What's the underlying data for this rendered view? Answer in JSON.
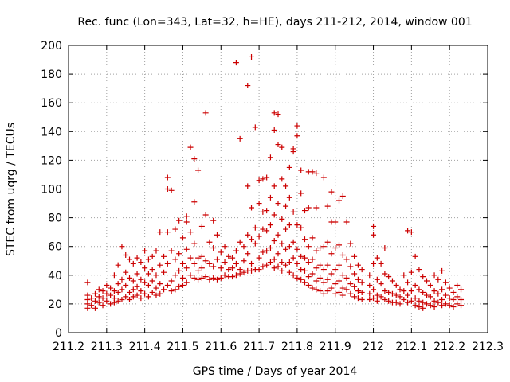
{
  "chart_data": {
    "type": "scatter",
    "title": "Rec. func (Lon=343, Lat=32, h=HE), days 211-212, 2014, window 001",
    "xlabel": "GPS time / Days of year 2014",
    "ylabel": "STEC from uqrg / TECUs",
    "xlim": [
      211.2,
      212.3
    ],
    "ylim": [
      0,
      200
    ],
    "x_ticks": [
      211.2,
      211.3,
      211.4,
      211.5,
      211.6,
      211.7,
      211.8,
      211.9,
      212.0,
      212.1,
      212.2,
      212.3
    ],
    "x_tick_labels": [
      "211.2",
      "211.3",
      "211.4",
      "211.5",
      "211.6",
      "211.7",
      "211.8",
      "211.9",
      "212",
      "212.1",
      "212.2",
      "212.3"
    ],
    "y_ticks": [
      0,
      20,
      40,
      60,
      80,
      100,
      120,
      140,
      160,
      180,
      200
    ],
    "y_tick_labels": [
      "0",
      "20",
      "40",
      "60",
      "80",
      "100",
      "120",
      "140",
      "160",
      "180",
      "200"
    ],
    "grid": true,
    "marker": "+",
    "color": "#cc0000",
    "points": [
      [
        211.25,
        35
      ],
      [
        211.25,
        26
      ],
      [
        211.25,
        23
      ],
      [
        211.25,
        20
      ],
      [
        211.25,
        17
      ],
      [
        211.26,
        24
      ],
      [
        211.26,
        19
      ],
      [
        211.27,
        27
      ],
      [
        211.27,
        22
      ],
      [
        211.27,
        17
      ],
      [
        211.28,
        30
      ],
      [
        211.28,
        25
      ],
      [
        211.28,
        21
      ],
      [
        211.29,
        29
      ],
      [
        211.29,
        24
      ],
      [
        211.29,
        19
      ],
      [
        211.3,
        33
      ],
      [
        211.3,
        27
      ],
      [
        211.3,
        22
      ],
      [
        211.31,
        31
      ],
      [
        211.31,
        26
      ],
      [
        211.31,
        20
      ],
      [
        211.32,
        40
      ],
      [
        211.32,
        29
      ],
      [
        211.32,
        24
      ],
      [
        211.32,
        21
      ],
      [
        211.33,
        47
      ],
      [
        211.33,
        34
      ],
      [
        211.33,
        28
      ],
      [
        211.33,
        22
      ],
      [
        211.34,
        60
      ],
      [
        211.34,
        37
      ],
      [
        211.34,
        30
      ],
      [
        211.34,
        23
      ],
      [
        211.35,
        54
      ],
      [
        211.35,
        42
      ],
      [
        211.35,
        33
      ],
      [
        211.35,
        25
      ],
      [
        211.36,
        51
      ],
      [
        211.36,
        38
      ],
      [
        211.36,
        28
      ],
      [
        211.36,
        23
      ],
      [
        211.37,
        48
      ],
      [
        211.37,
        36
      ],
      [
        211.37,
        30
      ],
      [
        211.37,
        25
      ],
      [
        211.38,
        52
      ],
      [
        211.38,
        41
      ],
      [
        211.38,
        32
      ],
      [
        211.38,
        26
      ],
      [
        211.39,
        49
      ],
      [
        211.39,
        37
      ],
      [
        211.39,
        29
      ],
      [
        211.39,
        24
      ],
      [
        211.4,
        57
      ],
      [
        211.4,
        45
      ],
      [
        211.4,
        35
      ],
      [
        211.4,
        27
      ],
      [
        211.41,
        51
      ],
      [
        211.41,
        41
      ],
      [
        211.41,
        33
      ],
      [
        211.41,
        25
      ],
      [
        211.42,
        53
      ],
      [
        211.42,
        44
      ],
      [
        211.42,
        36
      ],
      [
        211.42,
        28
      ],
      [
        211.43,
        57
      ],
      [
        211.43,
        40
      ],
      [
        211.43,
        31
      ],
      [
        211.43,
        26
      ],
      [
        211.44,
        70
      ],
      [
        211.44,
        47
      ],
      [
        211.44,
        34
      ],
      [
        211.44,
        27
      ],
      [
        211.45,
        53
      ],
      [
        211.45,
        42
      ],
      [
        211.45,
        30
      ],
      [
        211.46,
        108
      ],
      [
        211.46,
        100
      ],
      [
        211.46,
        70
      ],
      [
        211.46,
        48
      ],
      [
        211.46,
        33
      ],
      [
        211.47,
        99
      ],
      [
        211.47,
        57
      ],
      [
        211.47,
        36
      ],
      [
        211.47,
        29
      ],
      [
        211.48,
        72
      ],
      [
        211.48,
        51
      ],
      [
        211.48,
        40
      ],
      [
        211.48,
        30
      ],
      [
        211.49,
        78
      ],
      [
        211.49,
        55
      ],
      [
        211.49,
        43
      ],
      [
        211.49,
        32
      ],
      [
        211.5,
        66
      ],
      [
        211.5,
        48
      ],
      [
        211.5,
        38
      ],
      [
        211.5,
        33
      ],
      [
        211.51,
        81
      ],
      [
        211.51,
        77
      ],
      [
        211.51,
        58
      ],
      [
        211.51,
        45
      ],
      [
        211.51,
        35
      ],
      [
        211.52,
        129
      ],
      [
        211.52,
        70
      ],
      [
        211.52,
        52
      ],
      [
        211.52,
        40
      ],
      [
        211.53,
        121
      ],
      [
        211.53,
        91
      ],
      [
        211.53,
        62
      ],
      [
        211.53,
        48
      ],
      [
        211.53,
        38
      ],
      [
        211.54,
        113
      ],
      [
        211.54,
        52
      ],
      [
        211.54,
        43
      ],
      [
        211.54,
        37
      ],
      [
        211.55,
        74
      ],
      [
        211.55,
        53
      ],
      [
        211.55,
        45
      ],
      [
        211.55,
        38
      ],
      [
        211.56,
        153
      ],
      [
        211.56,
        82
      ],
      [
        211.56,
        50
      ],
      [
        211.56,
        39
      ],
      [
        211.57,
        63
      ],
      [
        211.57,
        48
      ],
      [
        211.57,
        37
      ],
      [
        211.58,
        78
      ],
      [
        211.58,
        59
      ],
      [
        211.58,
        46
      ],
      [
        211.58,
        38
      ],
      [
        211.59,
        68
      ],
      [
        211.59,
        51
      ],
      [
        211.59,
        37
      ],
      [
        211.6,
        56
      ],
      [
        211.6,
        45
      ],
      [
        211.6,
        38
      ],
      [
        211.61,
        60
      ],
      [
        211.61,
        49
      ],
      [
        211.61,
        40
      ],
      [
        211.62,
        53
      ],
      [
        211.62,
        44
      ],
      [
        211.62,
        39
      ],
      [
        211.63,
        52
      ],
      [
        211.63,
        45
      ],
      [
        211.63,
        39
      ],
      [
        211.64,
        188
      ],
      [
        211.64,
        57
      ],
      [
        211.64,
        48
      ],
      [
        211.64,
        40
      ],
      [
        211.65,
        135
      ],
      [
        211.65,
        63
      ],
      [
        211.65,
        44
      ],
      [
        211.65,
        41
      ],
      [
        211.66,
        60
      ],
      [
        211.66,
        50
      ],
      [
        211.66,
        42
      ],
      [
        211.67,
        172
      ],
      [
        211.67,
        102
      ],
      [
        211.67,
        68
      ],
      [
        211.67,
        55
      ],
      [
        211.67,
        43
      ],
      [
        211.68,
        192
      ],
      [
        211.68,
        87
      ],
      [
        211.68,
        65
      ],
      [
        211.68,
        48
      ],
      [
        211.68,
        43
      ],
      [
        211.69,
        143
      ],
      [
        211.69,
        73
      ],
      [
        211.69,
        62
      ],
      [
        211.69,
        44
      ],
      [
        211.7,
        106
      ],
      [
        211.7,
        90
      ],
      [
        211.7,
        67
      ],
      [
        211.7,
        52
      ],
      [
        211.7,
        44
      ],
      [
        211.71,
        107
      ],
      [
        211.71,
        84
      ],
      [
        211.71,
        72
      ],
      [
        211.71,
        56
      ],
      [
        211.71,
        46
      ],
      [
        211.72,
        108
      ],
      [
        211.72,
        85
      ],
      [
        211.72,
        71
      ],
      [
        211.72,
        57
      ],
      [
        211.72,
        47
      ],
      [
        211.73,
        122
      ],
      [
        211.73,
        94
      ],
      [
        211.73,
        75
      ],
      [
        211.73,
        59
      ],
      [
        211.73,
        49
      ],
      [
        211.74,
        153
      ],
      [
        211.74,
        141
      ],
      [
        211.74,
        102
      ],
      [
        211.74,
        82
      ],
      [
        211.74,
        64
      ],
      [
        211.74,
        51
      ],
      [
        211.74,
        45
      ],
      [
        211.75,
        152
      ],
      [
        211.75,
        131
      ],
      [
        211.75,
        90
      ],
      [
        211.75,
        68
      ],
      [
        211.75,
        55
      ],
      [
        211.75,
        46
      ],
      [
        211.76,
        129
      ],
      [
        211.76,
        107
      ],
      [
        211.76,
        79
      ],
      [
        211.76,
        62
      ],
      [
        211.76,
        49
      ],
      [
        211.76,
        43
      ],
      [
        211.77,
        102
      ],
      [
        211.77,
        88
      ],
      [
        211.77,
        72
      ],
      [
        211.77,
        58
      ],
      [
        211.77,
        47
      ],
      [
        211.78,
        115
      ],
      [
        211.78,
        94
      ],
      [
        211.78,
        75
      ],
      [
        211.78,
        60
      ],
      [
        211.78,
        49
      ],
      [
        211.78,
        42
      ],
      [
        211.79,
        128
      ],
      [
        211.79,
        126
      ],
      [
        211.79,
        84
      ],
      [
        211.79,
        63
      ],
      [
        211.79,
        52
      ],
      [
        211.79,
        40
      ],
      [
        211.8,
        144
      ],
      [
        211.8,
        137
      ],
      [
        211.8,
        75
      ],
      [
        211.8,
        58
      ],
      [
        211.8,
        48
      ],
      [
        211.8,
        38
      ],
      [
        211.81,
        113
      ],
      [
        211.81,
        97
      ],
      [
        211.81,
        73
      ],
      [
        211.81,
        53
      ],
      [
        211.81,
        44
      ],
      [
        211.81,
        37
      ],
      [
        211.82,
        85
      ],
      [
        211.82,
        65
      ],
      [
        211.82,
        52
      ],
      [
        211.82,
        43
      ],
      [
        211.82,
        35
      ],
      [
        211.83,
        112
      ],
      [
        211.83,
        87
      ],
      [
        211.83,
        60
      ],
      [
        211.83,
        49
      ],
      [
        211.83,
        39
      ],
      [
        211.83,
        33
      ],
      [
        211.84,
        112
      ],
      [
        211.84,
        66
      ],
      [
        211.84,
        51
      ],
      [
        211.84,
        41
      ],
      [
        211.84,
        31
      ],
      [
        211.85,
        111
      ],
      [
        211.85,
        87
      ],
      [
        211.85,
        57
      ],
      [
        211.85,
        45
      ],
      [
        211.85,
        36
      ],
      [
        211.85,
        30
      ],
      [
        211.86,
        59
      ],
      [
        211.86,
        47
      ],
      [
        211.86,
        38
      ],
      [
        211.86,
        29
      ],
      [
        211.87,
        108
      ],
      [
        211.87,
        60
      ],
      [
        211.87,
        44
      ],
      [
        211.87,
        35
      ],
      [
        211.87,
        27
      ],
      [
        211.88,
        88
      ],
      [
        211.88,
        63
      ],
      [
        211.88,
        47
      ],
      [
        211.88,
        37
      ],
      [
        211.88,
        29
      ],
      [
        211.89,
        98
      ],
      [
        211.89,
        77
      ],
      [
        211.89,
        55
      ],
      [
        211.89,
        41
      ],
      [
        211.89,
        31
      ],
      [
        211.9,
        77
      ],
      [
        211.9,
        59
      ],
      [
        211.9,
        44
      ],
      [
        211.9,
        34
      ],
      [
        211.9,
        27
      ],
      [
        211.91,
        92
      ],
      [
        211.91,
        61
      ],
      [
        211.91,
        47
      ],
      [
        211.91,
        36
      ],
      [
        211.91,
        28
      ],
      [
        211.92,
        95
      ],
      [
        211.92,
        54
      ],
      [
        211.92,
        40
      ],
      [
        211.92,
        31
      ],
      [
        211.92,
        26
      ],
      [
        211.93,
        77
      ],
      [
        211.93,
        51
      ],
      [
        211.93,
        38
      ],
      [
        211.93,
        30
      ],
      [
        211.94,
        62
      ],
      [
        211.94,
        46
      ],
      [
        211.94,
        34
      ],
      [
        211.94,
        27
      ],
      [
        211.95,
        53
      ],
      [
        211.95,
        41
      ],
      [
        211.95,
        32
      ],
      [
        211.95,
        25
      ],
      [
        211.96,
        47
      ],
      [
        211.96,
        37
      ],
      [
        211.96,
        29
      ],
      [
        211.96,
        24
      ],
      [
        211.97,
        44
      ],
      [
        211.97,
        35
      ],
      [
        211.97,
        28
      ],
      [
        211.97,
        23
      ],
      [
        211.99,
        40
      ],
      [
        211.99,
        33
      ],
      [
        211.99,
        27
      ],
      [
        211.99,
        23
      ],
      [
        212.0,
        74
      ],
      [
        212.0,
        68
      ],
      [
        212.0,
        48
      ],
      [
        212.0,
        30
      ],
      [
        212.0,
        24
      ],
      [
        212.01,
        52
      ],
      [
        212.01,
        37
      ],
      [
        212.01,
        26
      ],
      [
        212.01,
        22
      ],
      [
        212.02,
        48
      ],
      [
        212.02,
        34
      ],
      [
        212.02,
        25
      ],
      [
        212.03,
        59
      ],
      [
        212.03,
        41
      ],
      [
        212.03,
        29
      ],
      [
        212.03,
        23
      ],
      [
        212.04,
        39
      ],
      [
        212.04,
        28
      ],
      [
        212.04,
        22
      ],
      [
        212.05,
        36
      ],
      [
        212.05,
        27
      ],
      [
        212.05,
        21
      ],
      [
        212.06,
        33
      ],
      [
        212.06,
        26
      ],
      [
        212.06,
        21
      ],
      [
        212.07,
        30
      ],
      [
        212.07,
        25
      ],
      [
        212.07,
        20
      ],
      [
        212.08,
        40
      ],
      [
        212.08,
        29
      ],
      [
        212.08,
        23
      ],
      [
        212.09,
        71
      ],
      [
        212.09,
        35
      ],
      [
        212.09,
        26
      ],
      [
        212.09,
        21
      ],
      [
        212.1,
        70
      ],
      [
        212.1,
        42
      ],
      [
        212.1,
        29
      ],
      [
        212.1,
        22
      ],
      [
        212.11,
        53
      ],
      [
        212.11,
        33
      ],
      [
        212.11,
        24
      ],
      [
        212.11,
        19
      ],
      [
        212.12,
        44
      ],
      [
        212.12,
        30
      ],
      [
        212.12,
        22
      ],
      [
        212.12,
        18
      ],
      [
        212.13,
        39
      ],
      [
        212.13,
        28
      ],
      [
        212.13,
        21
      ],
      [
        212.13,
        17
      ],
      [
        212.14,
        36
      ],
      [
        212.14,
        26
      ],
      [
        212.14,
        20
      ],
      [
        212.15,
        33
      ],
      [
        212.15,
        25
      ],
      [
        212.15,
        19
      ],
      [
        212.16,
        40
      ],
      [
        212.16,
        29
      ],
      [
        212.16,
        22
      ],
      [
        212.16,
        18
      ],
      [
        212.17,
        37
      ],
      [
        212.17,
        27
      ],
      [
        212.17,
        21
      ],
      [
        212.18,
        43
      ],
      [
        212.18,
        30
      ],
      [
        212.18,
        23
      ],
      [
        212.18,
        19
      ],
      [
        212.19,
        35
      ],
      [
        212.19,
        26
      ],
      [
        212.19,
        20
      ],
      [
        212.2,
        31
      ],
      [
        212.2,
        24
      ],
      [
        212.2,
        19
      ],
      [
        212.21,
        28
      ],
      [
        212.21,
        23
      ],
      [
        212.21,
        18
      ],
      [
        212.22,
        33
      ],
      [
        212.22,
        25
      ],
      [
        212.22,
        20
      ],
      [
        212.23,
        30
      ],
      [
        212.23,
        23
      ],
      [
        212.23,
        19
      ]
    ]
  }
}
